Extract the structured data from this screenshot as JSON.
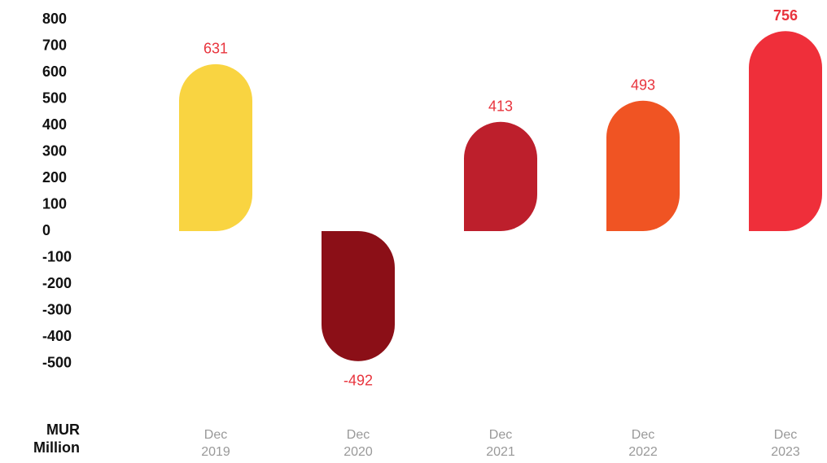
{
  "chart_data": {
    "type": "bar",
    "y_axis_label": "MUR\nMillion",
    "categories": [
      "Dec\n2019",
      "Dec\n2020",
      "Dec\n2021",
      "Dec\n2022",
      "Dec\n2023"
    ],
    "values": [
      631,
      -492,
      413,
      493,
      756
    ],
    "colors": [
      "#f9d441",
      "#8b0f17",
      "#bd1f2c",
      "#f05423",
      "#ef2f3a"
    ],
    "label_color": "#e8343d",
    "ylim": [
      -500,
      800
    ],
    "yticks": [
      800,
      700,
      600,
      500,
      400,
      300,
      200,
      100,
      0,
      -100,
      -200,
      -300,
      -400,
      -500
    ]
  }
}
